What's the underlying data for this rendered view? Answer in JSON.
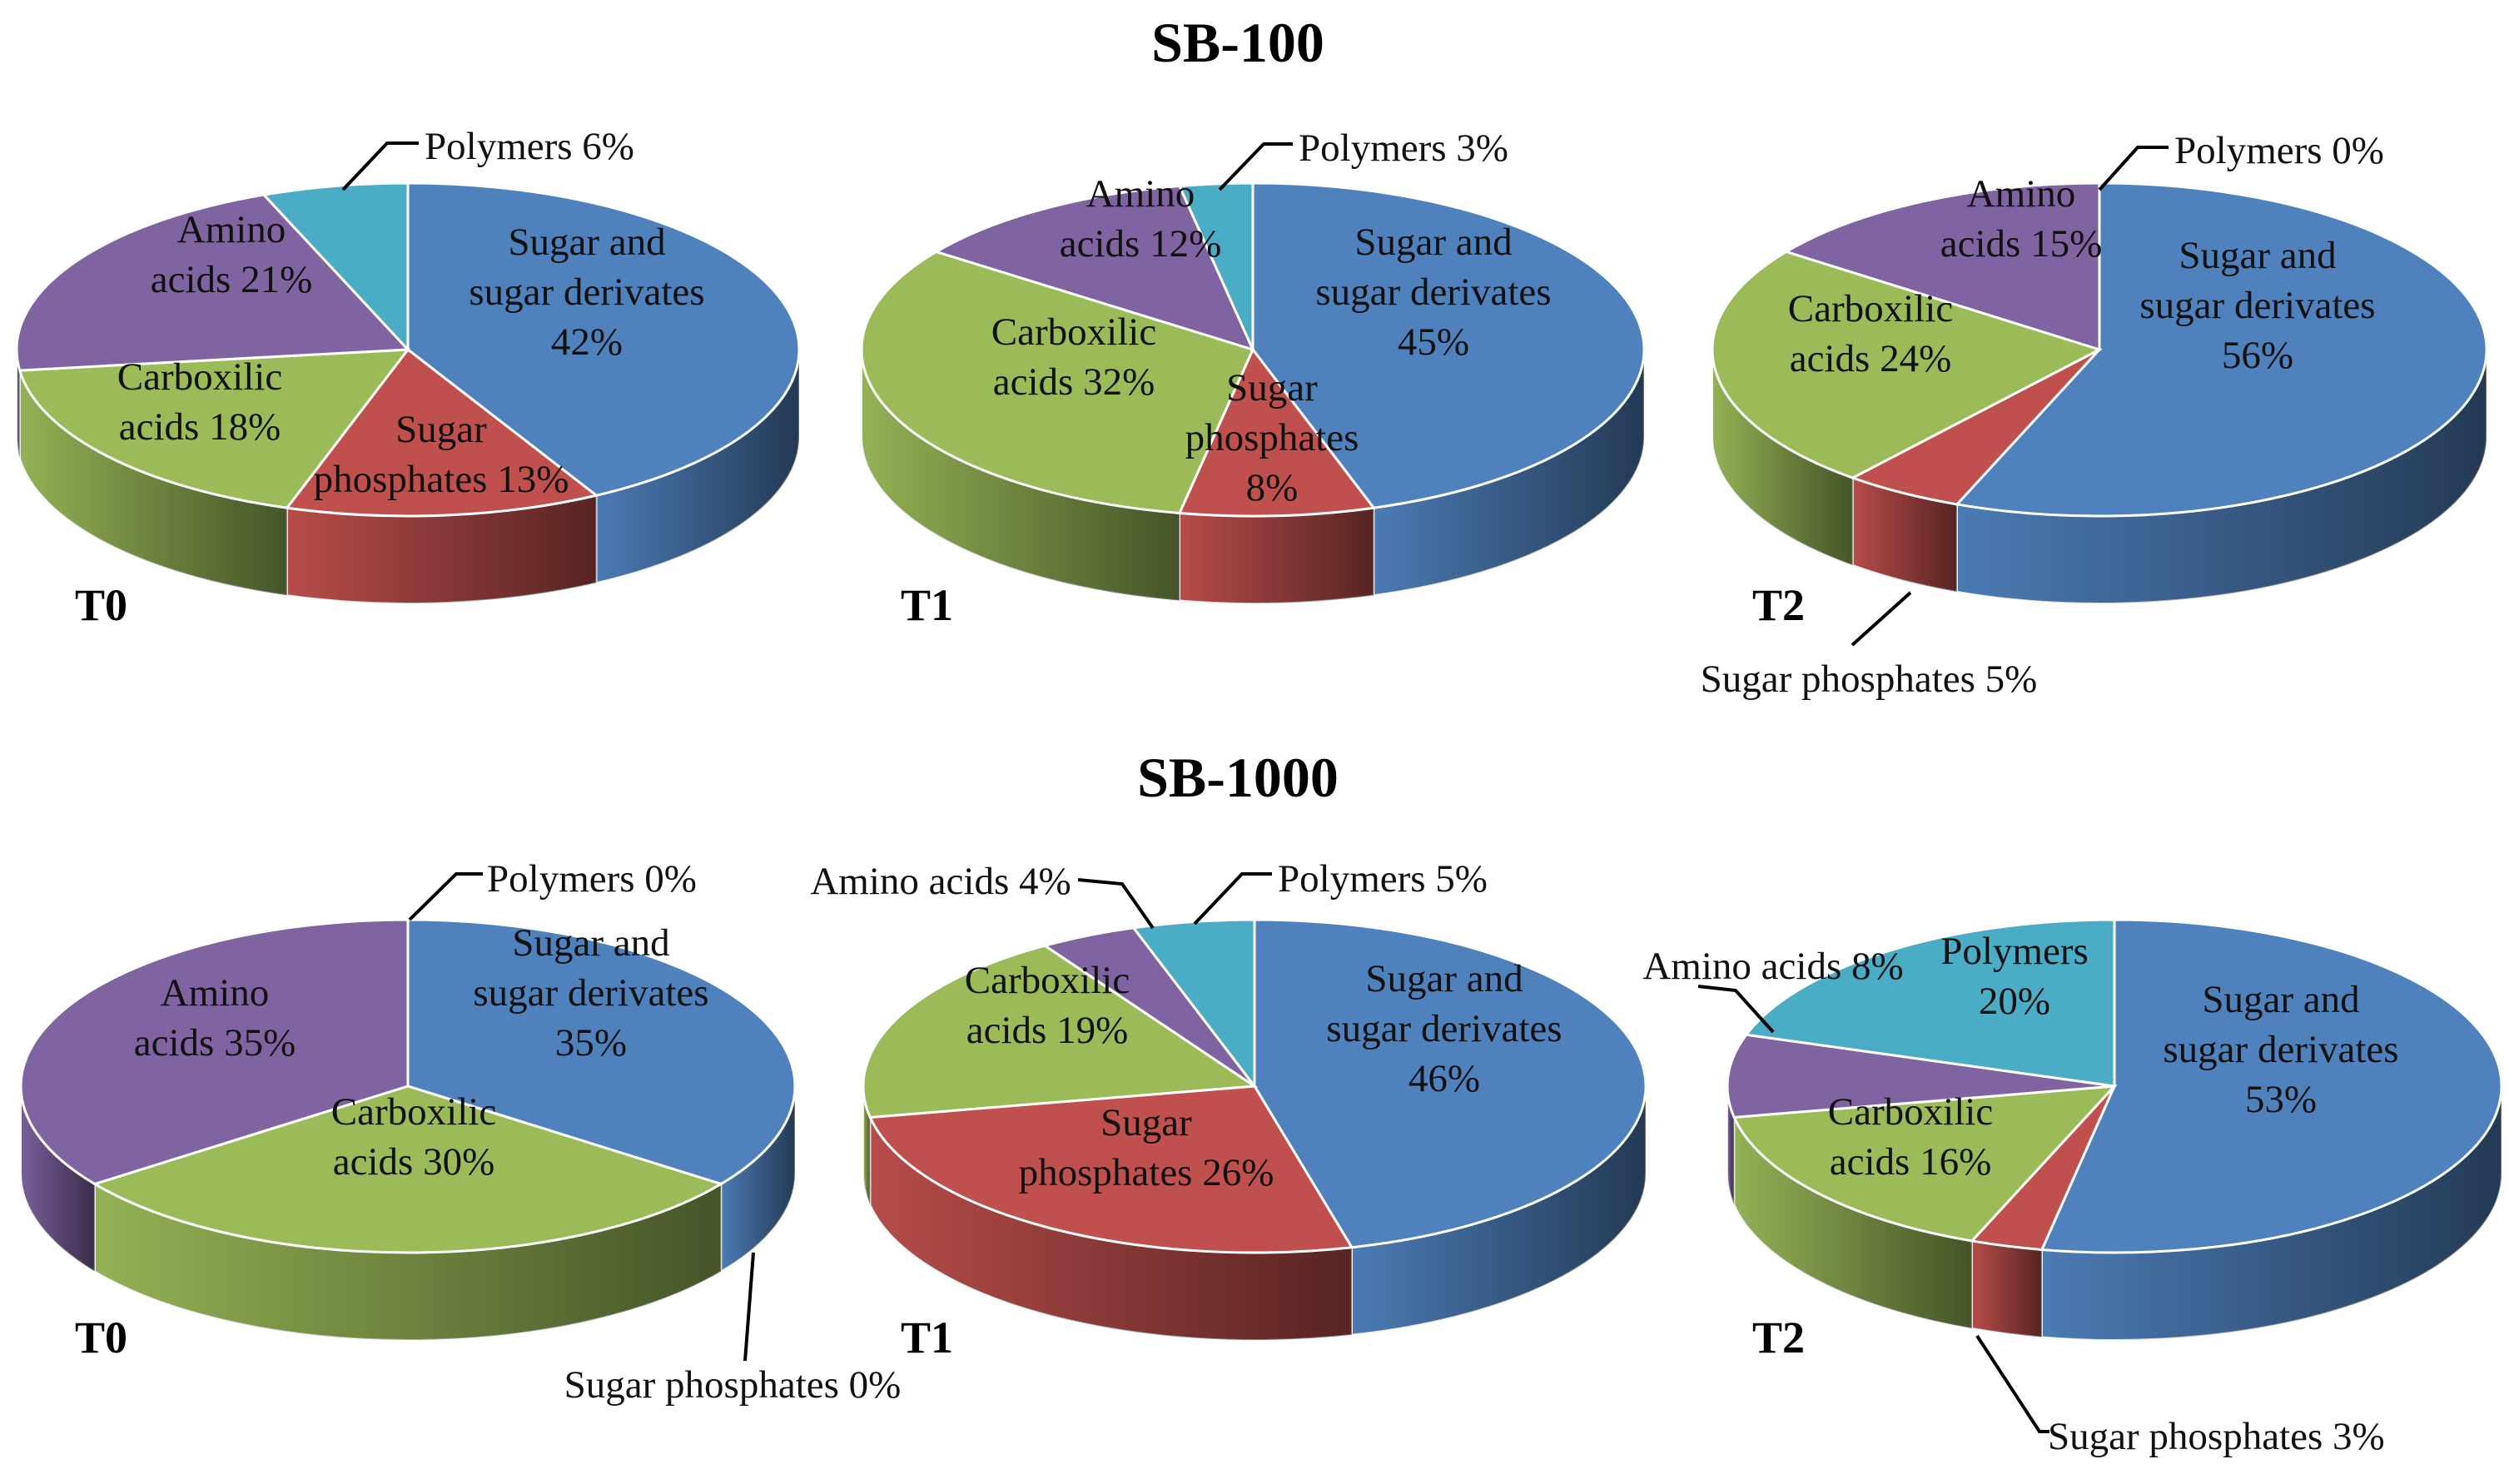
{
  "groups": [
    {
      "title": "SB-100"
    },
    {
      "title": "SB-1000"
    }
  ],
  "colors": {
    "sugar": "#4f81bd",
    "phosphates": "#c0504d",
    "carboxylic": "#9bbb59",
    "amino": "#8064a2",
    "polymers": "#4bacc6"
  },
  "chart_data": [
    {
      "type": "pie",
      "group": "SB-100",
      "panel": "T0",
      "slices": [
        {
          "key": "sugar",
          "value": 42,
          "label": [
            "Sugar and",
            "sugar derivates",
            "42%"
          ]
        },
        {
          "key": "phosphates",
          "value": 13,
          "label": [
            "Sugar",
            "phosphates 13%"
          ]
        },
        {
          "key": "carboxylic",
          "value": 18,
          "label": [
            "Carboxilic",
            "acids 18%"
          ]
        },
        {
          "key": "amino",
          "value": 21,
          "label": [
            "Amino",
            "acids 21%"
          ]
        },
        {
          "key": "polymers",
          "value": 6,
          "label": [
            "Polymers 6%"
          ]
        }
      ]
    },
    {
      "type": "pie",
      "group": "SB-100",
      "panel": "T1",
      "slices": [
        {
          "key": "sugar",
          "value": 45,
          "label": [
            "Sugar and",
            "sugar derivates",
            "45%"
          ]
        },
        {
          "key": "phosphates",
          "value": 8,
          "label": [
            "Sugar",
            "phosphates",
            "8%"
          ]
        },
        {
          "key": "carboxylic",
          "value": 32,
          "label": [
            "Carboxilic",
            "acids 32%"
          ]
        },
        {
          "key": "amino",
          "value": 12,
          "label": [
            "Amino",
            "acids 12%"
          ]
        },
        {
          "key": "polymers",
          "value": 3,
          "label": [
            "Polymers 3%"
          ]
        }
      ]
    },
    {
      "type": "pie",
      "group": "SB-100",
      "panel": "T2",
      "slices": [
        {
          "key": "sugar",
          "value": 56,
          "label": [
            "Sugar and",
            "sugar derivates",
            "56%"
          ]
        },
        {
          "key": "phosphates",
          "value": 5,
          "label": [
            "Sugar phosphates 5%"
          ]
        },
        {
          "key": "carboxylic",
          "value": 24,
          "label": [
            "Carboxilic",
            "acids 24%"
          ]
        },
        {
          "key": "amino",
          "value": 15,
          "label": [
            "Amino",
            "acids 15%"
          ]
        },
        {
          "key": "polymers",
          "value": 0,
          "label": [
            "Polymers 0%"
          ]
        }
      ]
    },
    {
      "type": "pie",
      "group": "SB-1000",
      "panel": "T0",
      "slices": [
        {
          "key": "sugar",
          "value": 35,
          "label": [
            "Sugar and",
            "sugar derivates",
            "35%"
          ]
        },
        {
          "key": "phosphates",
          "value": 0,
          "label": [
            "Sugar phosphates 0%"
          ]
        },
        {
          "key": "carboxylic",
          "value": 30,
          "label": [
            "Carboxilic",
            "acids 30%"
          ]
        },
        {
          "key": "amino",
          "value": 35,
          "label": [
            "Amino",
            "acids 35%"
          ]
        },
        {
          "key": "polymers",
          "value": 0,
          "label": [
            "Polymers 0%"
          ]
        }
      ]
    },
    {
      "type": "pie",
      "group": "SB-1000",
      "panel": "T1",
      "slices": [
        {
          "key": "sugar",
          "value": 46,
          "label": [
            "Sugar and",
            "sugar derivates",
            "46%"
          ]
        },
        {
          "key": "phosphates",
          "value": 26,
          "label": [
            "Sugar",
            "phosphates 26%"
          ]
        },
        {
          "key": "carboxylic",
          "value": 19,
          "label": [
            "Carboxilic",
            "acids 19%"
          ]
        },
        {
          "key": "amino",
          "value": 4,
          "label": [
            "Amino acids 4%"
          ]
        },
        {
          "key": "polymers",
          "value": 5,
          "label": [
            "Polymers 5%"
          ]
        }
      ]
    },
    {
      "type": "pie",
      "group": "SB-1000",
      "panel": "T2",
      "slices": [
        {
          "key": "sugar",
          "value": 53,
          "label": [
            "Sugar and",
            "sugar derivates",
            "53%"
          ]
        },
        {
          "key": "phosphates",
          "value": 3,
          "label": [
            "Sugar phosphates 3%"
          ]
        },
        {
          "key": "carboxylic",
          "value": 16,
          "label": [
            "Carboxilic",
            "acids 16%"
          ]
        },
        {
          "key": "amino",
          "value": 8,
          "label": [
            "Amino acids 8%"
          ]
        },
        {
          "key": "polymers",
          "value": 20,
          "label": [
            "Polymers",
            "20%"
          ]
        }
      ]
    }
  ]
}
